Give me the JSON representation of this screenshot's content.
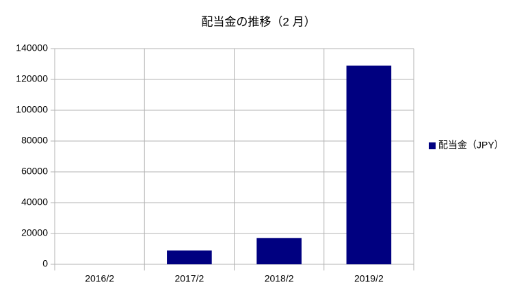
{
  "chart_data": {
    "type": "bar",
    "title": "配当金の推移（2 月）",
    "categories": [
      "2016/2",
      "2017/2",
      "2018/2",
      "2019/2"
    ],
    "series": [
      {
        "name": "配当金（JPY）",
        "color": "#000080",
        "values": [
          0,
          9000,
          17000,
          129000
        ]
      }
    ],
    "ylim": [
      0,
      140000
    ],
    "yticks": [
      0,
      20000,
      40000,
      60000,
      80000,
      100000,
      120000,
      140000
    ],
    "grid": true,
    "legend": "right"
  }
}
